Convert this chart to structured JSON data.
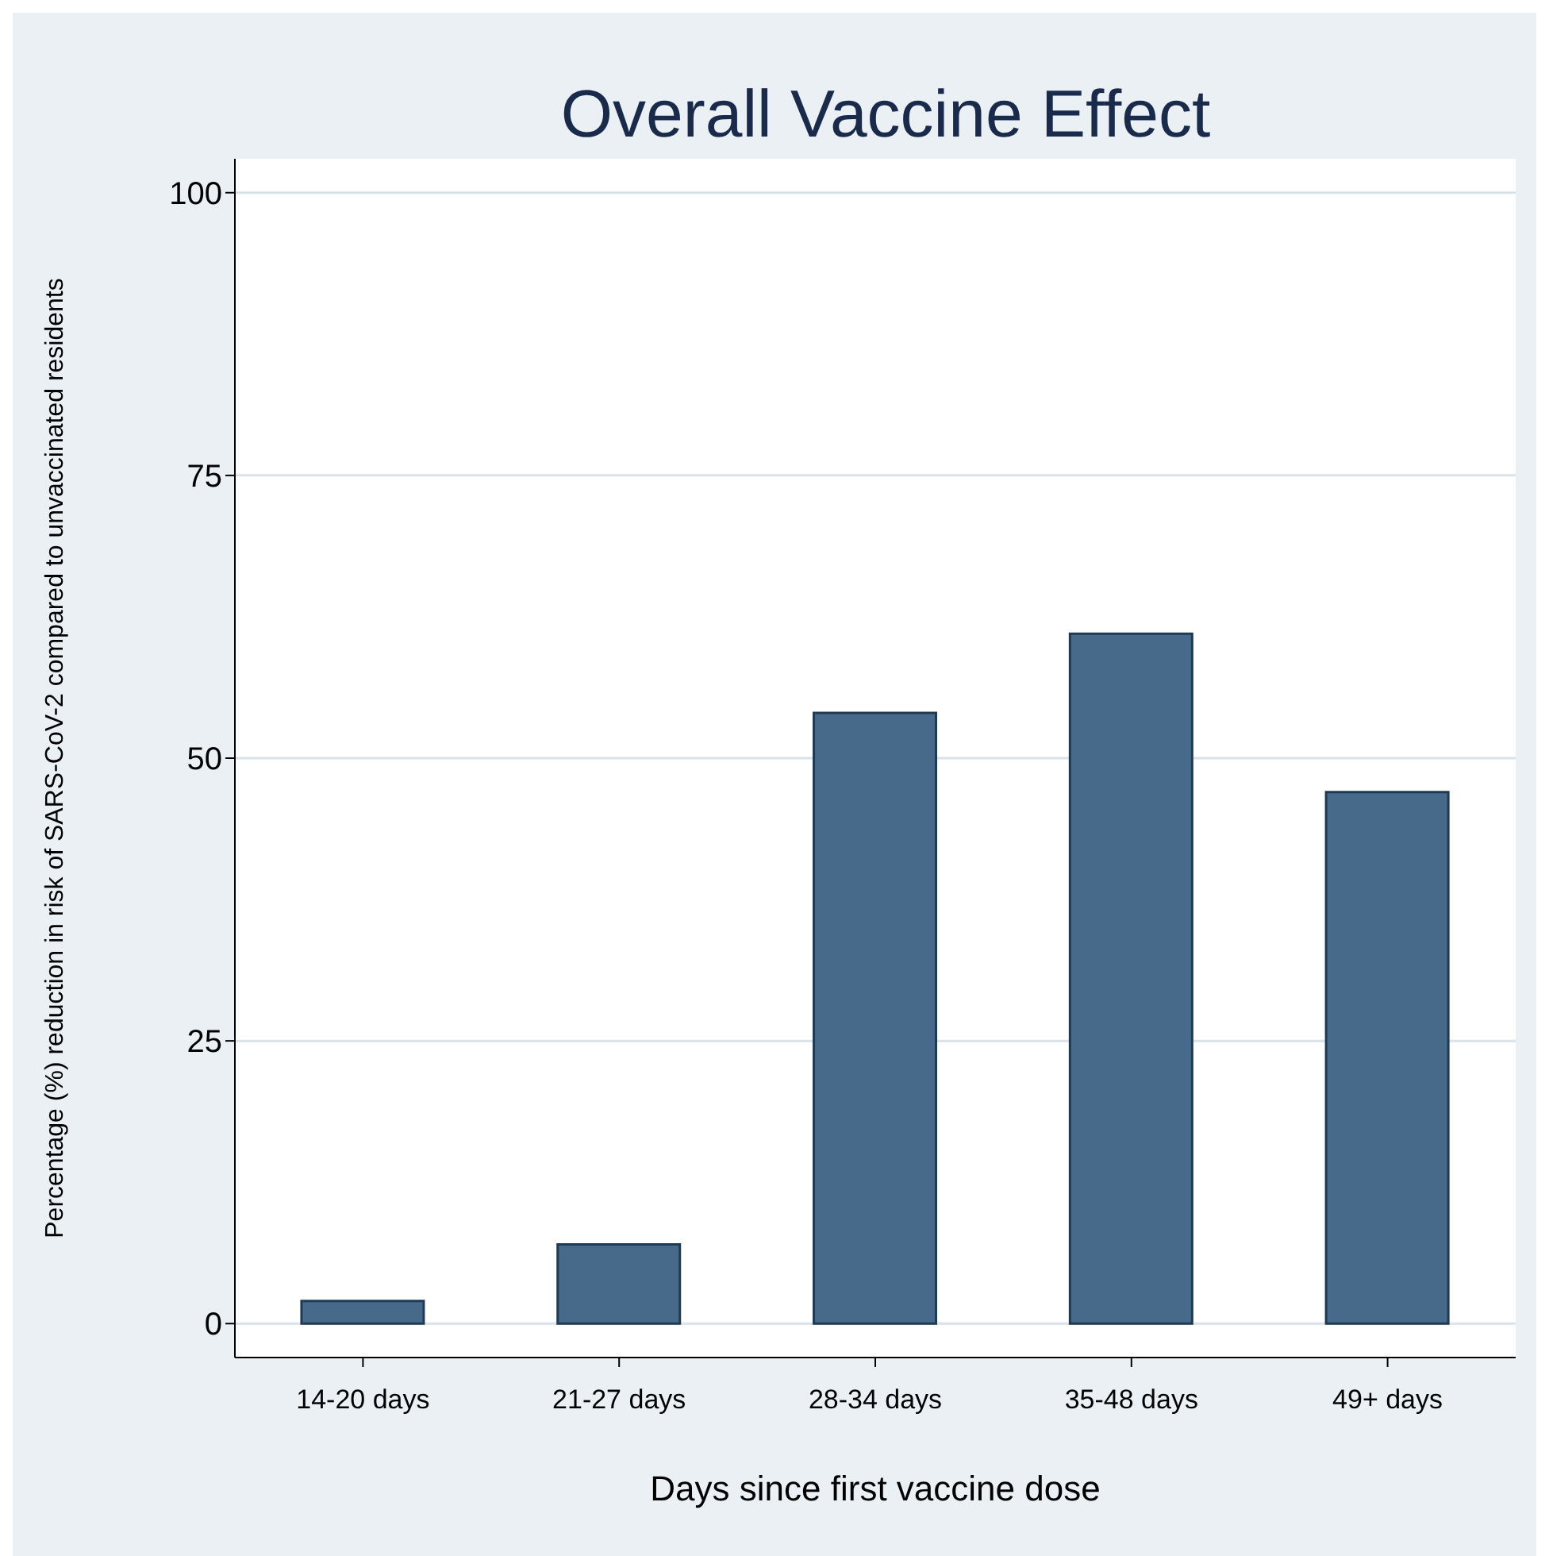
{
  "chart_data": {
    "type": "bar",
    "title": "Overall Vaccine Effect",
    "xlabel": "Days since first vaccine dose",
    "ylabel": "Percentage (%) reduction in risk of SARS-CoV-2 compared to unvaccinated residents",
    "categories": [
      "14-20 days",
      "21-27 days",
      "28-34 days",
      "35-48 days",
      "49+ days"
    ],
    "values": [
      2,
      7,
      54,
      61,
      47
    ],
    "color": "#476a8a",
    "ylim": [
      -3,
      103
    ],
    "yticks": [
      0,
      25,
      50,
      75,
      100
    ],
    "grid": "y"
  }
}
